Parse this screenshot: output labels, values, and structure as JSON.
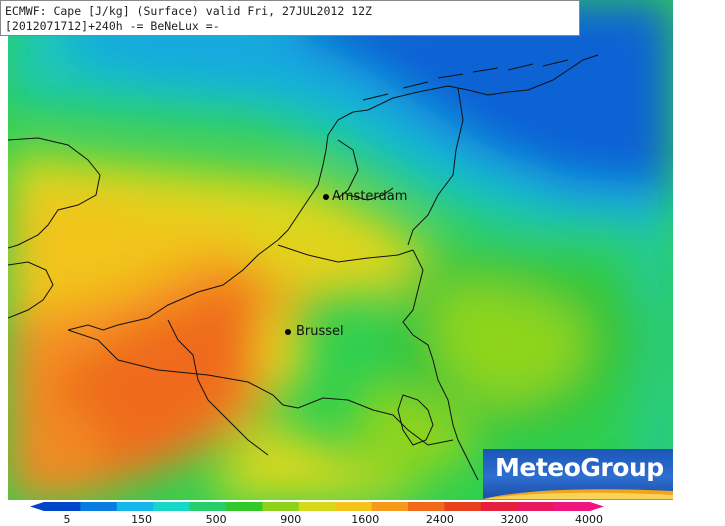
{
  "header": {
    "line1": "ECMWF: Cape [J/kg] (Surface) valid Fri, 27JUL2012 12Z",
    "line2": "[2012071712]+240h -= BeNeLux =-"
  },
  "cities": [
    {
      "name": "Amsterdam"
    },
    {
      "name": "Brussel"
    }
  ],
  "logo": {
    "text": "MeteoGroup"
  },
  "colorbar": {
    "tick_labels": [
      "5",
      "150",
      "500",
      "900",
      "1600",
      "2400",
      "3200",
      "4000"
    ],
    "colors": [
      "#0046c8",
      "#0a7ee0",
      "#13b7e8",
      "#18d6c8",
      "#27cf6a",
      "#33c92a",
      "#8fd21c",
      "#d6d91a",
      "#f5c41a",
      "#f59a1a",
      "#ef6a1a",
      "#e8401c",
      "#e6203c",
      "#e8185e",
      "#f0147e"
    ]
  }
}
